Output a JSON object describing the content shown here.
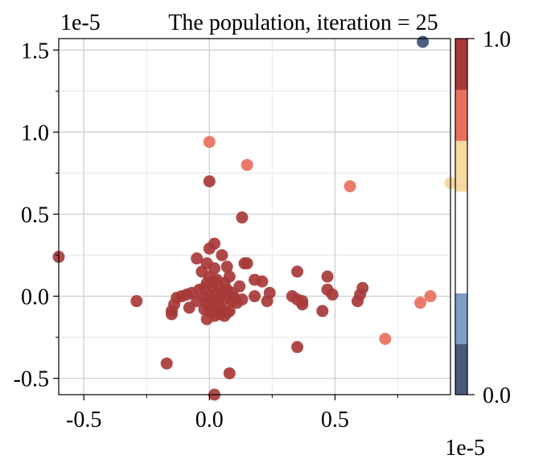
{
  "chart_data": {
    "type": "scatter",
    "title": "The population, iteration = 25",
    "x_offset_label": "1e-5",
    "y_offset_label": "1e-5",
    "xlim": [
      -0.6,
      0.96
    ],
    "ylim": [
      -0.6,
      1.57
    ],
    "grid": true,
    "x_ticks": [
      -0.5,
      0.0,
      0.5
    ],
    "x_tick_labels": [
      "-0.5",
      "0.0",
      "0.5"
    ],
    "y_ticks": [
      -0.5,
      0.0,
      0.5,
      1.0,
      1.5
    ],
    "y_tick_labels": [
      "-0.5",
      "0.0",
      "0.5",
      "1.0",
      "1.5"
    ],
    "colorbar": {
      "min_label": "0.0",
      "max_label": "1.0",
      "colors_bottom_to_top": [
        "#4a5a78",
        "#7f9ec6",
        "#ffffff",
        "#ffffff",
        "#f6d8a0",
        "#e8705e",
        "#a83a3a"
      ]
    },
    "points": [
      {
        "x": 0.85,
        "y": 1.55,
        "c": 0.0
      },
      {
        "x": 0.97,
        "y": 0.69,
        "c": 0.55
      },
      {
        "x": 0.56,
        "y": 0.67,
        "c": 0.75
      },
      {
        "x": 0.0,
        "y": 0.94,
        "c": 0.75
      },
      {
        "x": 0.15,
        "y": 0.8,
        "c": 0.75
      },
      {
        "x": 0.7,
        "y": -0.26,
        "c": 0.75
      },
      {
        "x": 0.84,
        "y": -0.04,
        "c": 0.75
      },
      {
        "x": 0.88,
        "y": 0.0,
        "c": 0.75
      },
      {
        "x": 0.0,
        "y": 0.7,
        "c": 0.95
      },
      {
        "x": 0.13,
        "y": 0.48,
        "c": 0.95
      },
      {
        "x": -0.6,
        "y": 0.24,
        "c": 0.95
      },
      {
        "x": -0.29,
        "y": -0.03,
        "c": 0.95
      },
      {
        "x": -0.17,
        "y": -0.41,
        "c": 0.95
      },
      {
        "x": 0.08,
        "y": -0.47,
        "c": 0.95
      },
      {
        "x": 0.02,
        "y": -0.6,
        "c": 0.95
      },
      {
        "x": 0.35,
        "y": -0.31,
        "c": 0.95
      },
      {
        "x": 0.35,
        "y": 0.15,
        "c": 0.95
      },
      {
        "x": 0.47,
        "y": 0.12,
        "c": 0.95
      },
      {
        "x": 0.47,
        "y": 0.04,
        "c": 0.95
      },
      {
        "x": 0.49,
        "y": 0.01,
        "c": 0.95
      },
      {
        "x": 0.61,
        "y": 0.05,
        "c": 0.95
      },
      {
        "x": 0.6,
        "y": 0.01,
        "c": 0.95
      },
      {
        "x": 0.59,
        "y": -0.03,
        "c": 0.95
      },
      {
        "x": 0.45,
        "y": -0.09,
        "c": 0.95
      },
      {
        "x": 0.37,
        "y": -0.03,
        "c": 0.95
      },
      {
        "x": 0.37,
        "y": -0.05,
        "c": 0.95
      },
      {
        "x": 0.33,
        "y": 0.0,
        "c": 0.95
      },
      {
        "x": 0.35,
        "y": -0.02,
        "c": 0.95
      },
      {
        "x": 0.24,
        "y": 0.02,
        "c": 0.95
      },
      {
        "x": 0.21,
        "y": 0.09,
        "c": 0.95
      },
      {
        "x": 0.23,
        "y": -0.03,
        "c": 0.95
      },
      {
        "x": 0.18,
        "y": 0.1,
        "c": 0.95
      },
      {
        "x": 0.18,
        "y": 0.0,
        "c": 0.95
      },
      {
        "x": 0.12,
        "y": 0.06,
        "c": 0.95
      },
      {
        "x": 0.15,
        "y": 0.2,
        "c": 0.95
      },
      {
        "x": 0.14,
        "y": 0.2,
        "c": 0.95
      },
      {
        "x": 0.02,
        "y": 0.32,
        "c": 0.95
      },
      {
        "x": 0.0,
        "y": 0.29,
        "c": 0.95
      },
      {
        "x": 0.05,
        "y": 0.25,
        "c": 0.95
      },
      {
        "x": -0.05,
        "y": 0.23,
        "c": 0.95
      },
      {
        "x": -0.01,
        "y": 0.2,
        "c": 0.95
      },
      {
        "x": 0.02,
        "y": 0.17,
        "c": 0.95
      },
      {
        "x": 0.07,
        "y": 0.18,
        "c": 0.95
      },
      {
        "x": 0.08,
        "y": 0.12,
        "c": 0.95
      },
      {
        "x": -0.03,
        "y": 0.15,
        "c": 0.95
      },
      {
        "x": 0.0,
        "y": 0.12,
        "c": 0.95
      },
      {
        "x": 0.03,
        "y": 0.1,
        "c": 0.95
      },
      {
        "x": 0.06,
        "y": 0.08,
        "c": 0.95
      },
      {
        "x": -0.01,
        "y": 0.08,
        "c": 0.95
      },
      {
        "x": 0.01,
        "y": 0.06,
        "c": 0.95
      },
      {
        "x": 0.04,
        "y": 0.05,
        "c": 0.95
      },
      {
        "x": 0.07,
        "y": 0.04,
        "c": 0.95
      },
      {
        "x": 0.09,
        "y": 0.02,
        "c": 0.95
      },
      {
        "x": -0.04,
        "y": 0.04,
        "c": 0.95
      },
      {
        "x": -0.07,
        "y": 0.02,
        "c": 0.95
      },
      {
        "x": -0.09,
        "y": 0.01,
        "c": 0.95
      },
      {
        "x": -0.11,
        "y": 0.0,
        "c": 0.95
      },
      {
        "x": -0.13,
        "y": -0.01,
        "c": 0.95
      },
      {
        "x": -0.14,
        "y": -0.05,
        "c": 0.95
      },
      {
        "x": -0.15,
        "y": -0.09,
        "c": 0.95
      },
      {
        "x": -0.15,
        "y": -0.11,
        "c": 0.95
      },
      {
        "x": -0.08,
        "y": -0.07,
        "c": 0.95
      },
      {
        "x": -0.05,
        "y": -0.03,
        "c": 0.95
      },
      {
        "x": -0.02,
        "y": -0.01,
        "c": 0.95
      },
      {
        "x": 0.0,
        "y": 0.0,
        "c": 0.95
      },
      {
        "x": 0.02,
        "y": 0.01,
        "c": 0.95
      },
      {
        "x": 0.04,
        "y": -0.01,
        "c": 0.95
      },
      {
        "x": 0.06,
        "y": -0.02,
        "c": 0.95
      },
      {
        "x": 0.09,
        "y": -0.03,
        "c": 0.95
      },
      {
        "x": 0.11,
        "y": -0.04,
        "c": 0.95
      },
      {
        "x": 0.1,
        "y": -0.01,
        "c": 0.95
      },
      {
        "x": 0.13,
        "y": -0.02,
        "c": 0.95
      },
      {
        "x": -0.01,
        "y": -0.04,
        "c": 0.95
      },
      {
        "x": 0.01,
        "y": -0.05,
        "c": 0.95
      },
      {
        "x": 0.03,
        "y": -0.06,
        "c": 0.95
      },
      {
        "x": 0.05,
        "y": -0.08,
        "c": 0.95
      },
      {
        "x": 0.07,
        "y": -0.1,
        "c": 0.95
      },
      {
        "x": 0.04,
        "y": -0.11,
        "c": 0.95
      },
      {
        "x": 0.02,
        "y": -0.1,
        "c": 0.95
      },
      {
        "x": 0.0,
        "y": -0.09,
        "c": 0.95
      },
      {
        "x": -0.02,
        "y": -0.08,
        "c": 0.95
      },
      {
        "x": -0.01,
        "y": -0.14,
        "c": 0.95
      },
      {
        "x": 0.02,
        "y": -0.12,
        "c": 0.95
      },
      {
        "x": 0.06,
        "y": -0.12,
        "c": 0.95
      },
      {
        "x": 0.08,
        "y": -0.09,
        "c": 0.95
      },
      {
        "x": 0.02,
        "y": 0.09,
        "c": 0.95
      },
      {
        "x": -0.02,
        "y": 0.05,
        "c": 0.95
      },
      {
        "x": 0.05,
        "y": 0.02,
        "c": 0.95
      }
    ]
  }
}
